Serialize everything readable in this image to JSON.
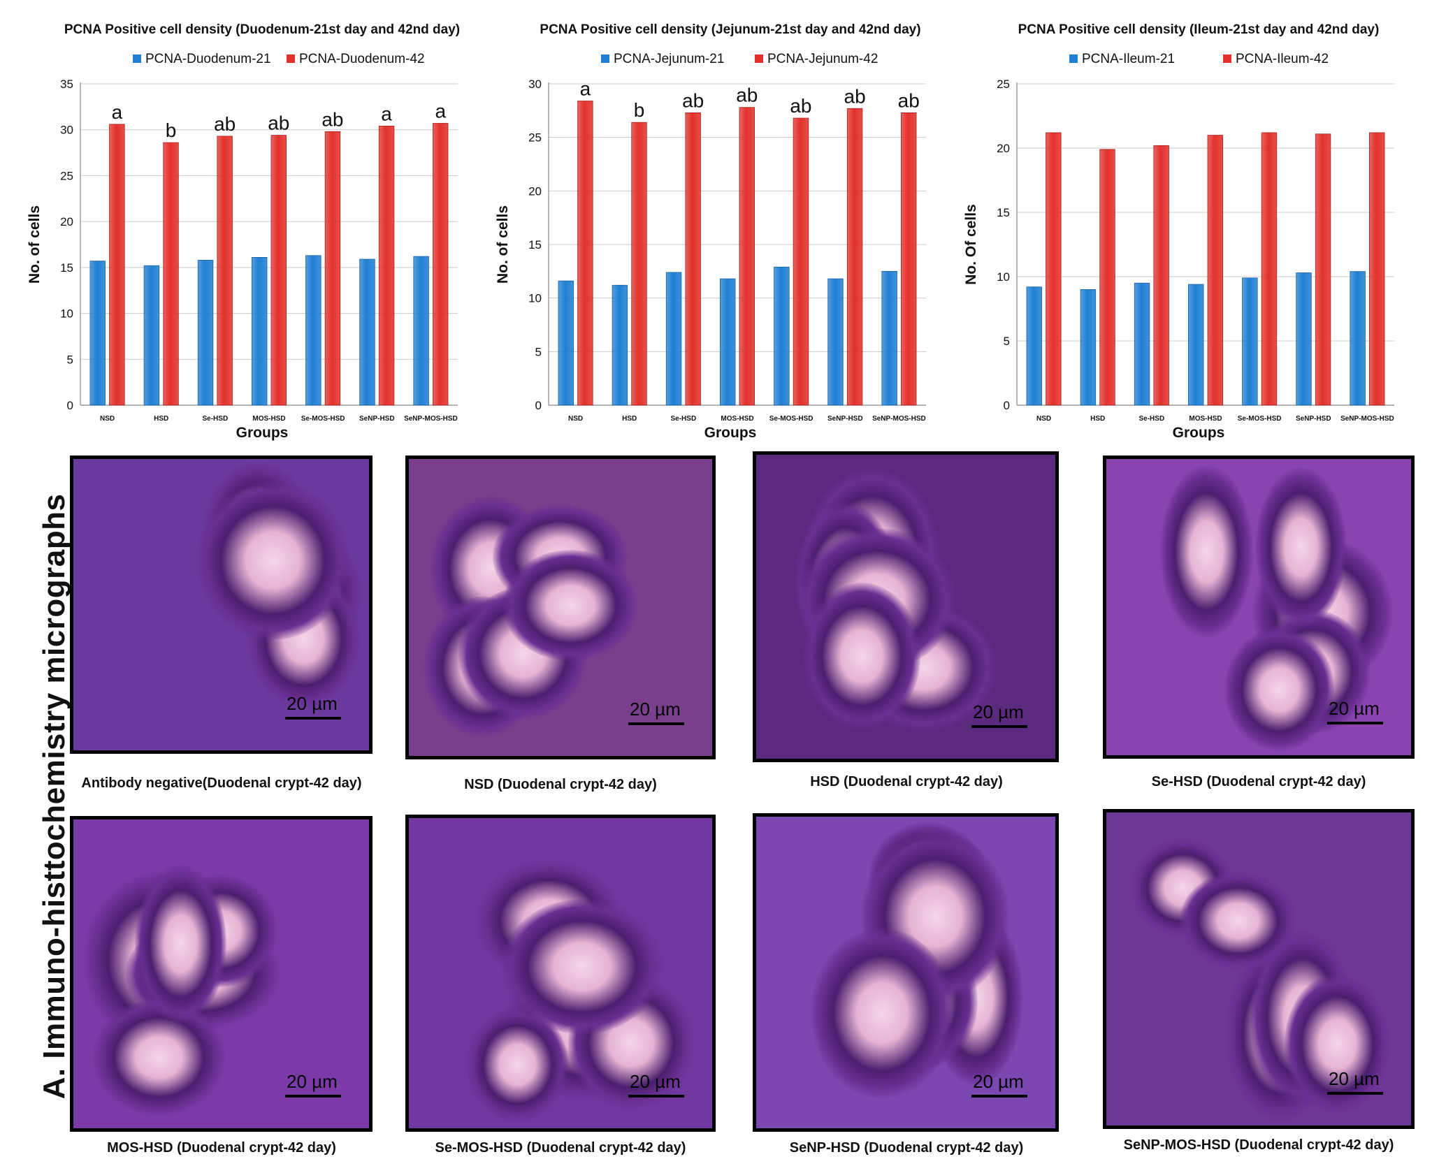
{
  "chart_data": [
    {
      "type": "bar",
      "title": "PCNA Positive cell density (Duodenum-21st day and 42nd day)",
      "categories": [
        "NSD",
        "HSD",
        "Se-HSD",
        "MOS-HSD",
        "Se-MOS-HSD",
        "SeNP-HSD",
        "SeNP-MOS-HSD"
      ],
      "series": [
        {
          "name": "PCNA-Duodenum-21",
          "color": "#1f7fd4",
          "values": [
            15.7,
            15.2,
            15.8,
            16.1,
            16.3,
            15.9,
            16.2
          ]
        },
        {
          "name": "PCNA-Duodenum-42",
          "color": "#e3302a",
          "values": [
            30.6,
            28.6,
            29.3,
            29.4,
            29.8,
            30.4,
            30.7
          ]
        }
      ],
      "annotations": [
        "a",
        "b",
        "ab",
        "ab",
        "ab",
        "a",
        "a"
      ],
      "xlabel": "Groups",
      "ylabel": "No. of cells",
      "ylim": [
        0,
        35
      ],
      "yticks": [
        0,
        5,
        10,
        15,
        20,
        25,
        30,
        35
      ],
      "legend_position": "top"
    },
    {
      "type": "bar",
      "title": "PCNA Positive cell density (Jejunum-21st day and 42nd day)",
      "categories": [
        "NSD",
        "HSD",
        "Se-HSD",
        "MOS-HSD",
        "Se-MOS-HSD",
        "SeNP-HSD",
        "SeNP-MOS-HSD"
      ],
      "series": [
        {
          "name": "PCNA-Jejunum-21",
          "color": "#1f7fd4",
          "values": [
            11.6,
            11.2,
            12.4,
            11.8,
            12.9,
            11.8,
            12.5
          ]
        },
        {
          "name": "PCNA-Jejunum-42",
          "color": "#e3302a",
          "values": [
            28.4,
            26.4,
            27.3,
            27.8,
            26.8,
            27.7,
            27.3
          ]
        }
      ],
      "annotations": [
        "a",
        "b",
        "ab",
        "ab",
        "ab",
        "ab",
        "ab"
      ],
      "xlabel": "Groups",
      "ylabel": "No. of cells",
      "ylim": [
        0,
        30
      ],
      "yticks": [
        0,
        5,
        10,
        15,
        20,
        25,
        30
      ],
      "legend_position": "top"
    },
    {
      "type": "bar",
      "title": "PCNA Positive cell density (Ileum-21st day and 42nd day)",
      "categories": [
        "NSD",
        "HSD",
        "Se-HSD",
        "MOS-HSD",
        "Se-MOS-HSD",
        "SeNP-HSD",
        "SeNP-MOS-HSD"
      ],
      "series": [
        {
          "name": "PCNA-Ileum-21",
          "color": "#1f7fd4",
          "values": [
            9.2,
            9.0,
            9.5,
            9.4,
            9.9,
            10.3,
            10.4
          ]
        },
        {
          "name": "PCNA-Ileum-42",
          "color": "#e3302a",
          "values": [
            21.2,
            19.9,
            20.2,
            21.0,
            21.2,
            21.1,
            21.2
          ]
        }
      ],
      "annotations": [],
      "xlabel": "Groups",
      "ylabel": "No. Of cells",
      "ylim": [
        0,
        25
      ],
      "yticks": [
        0,
        5,
        10,
        15,
        20,
        25
      ],
      "legend_position": "top"
    }
  ],
  "micrographs_section": {
    "title": "A. Immuno-histtochemistry micrographs",
    "panels": [
      {
        "caption": "Antibody negative(Duodenal crypt-42 day)",
        "scale": "20 µm",
        "tint": "#6a3a9e"
      },
      {
        "caption": "NSD (Duodenal crypt-42 day)",
        "scale": "20 µm",
        "tint": "#7a3f8c"
      },
      {
        "caption": "HSD (Duodenal crypt-42 day)",
        "scale": "20 µm",
        "tint": "#5a2a7e"
      },
      {
        "caption": "Se-HSD (Duodenal crypt-42 day)",
        "scale": "20 µm",
        "tint": "#8a44b0"
      },
      {
        "caption": "MOS-HSD (Duodenal crypt-42 day)",
        "scale": "20 µm",
        "tint": "#7b3aa8"
      },
      {
        "caption": "Se-MOS-HSD (Duodenal crypt-42 day)",
        "scale": "20 µm",
        "tint": "#7038a0"
      },
      {
        "caption": "SeNP-HSD (Duodenal crypt-42 day)",
        "scale": "20 µm",
        "tint": "#7a48b0"
      },
      {
        "caption": "SeNP-MOS-HSD (Duodenal crypt-42 day)",
        "scale": "20 µm",
        "tint": "#6e3898"
      }
    ]
  }
}
